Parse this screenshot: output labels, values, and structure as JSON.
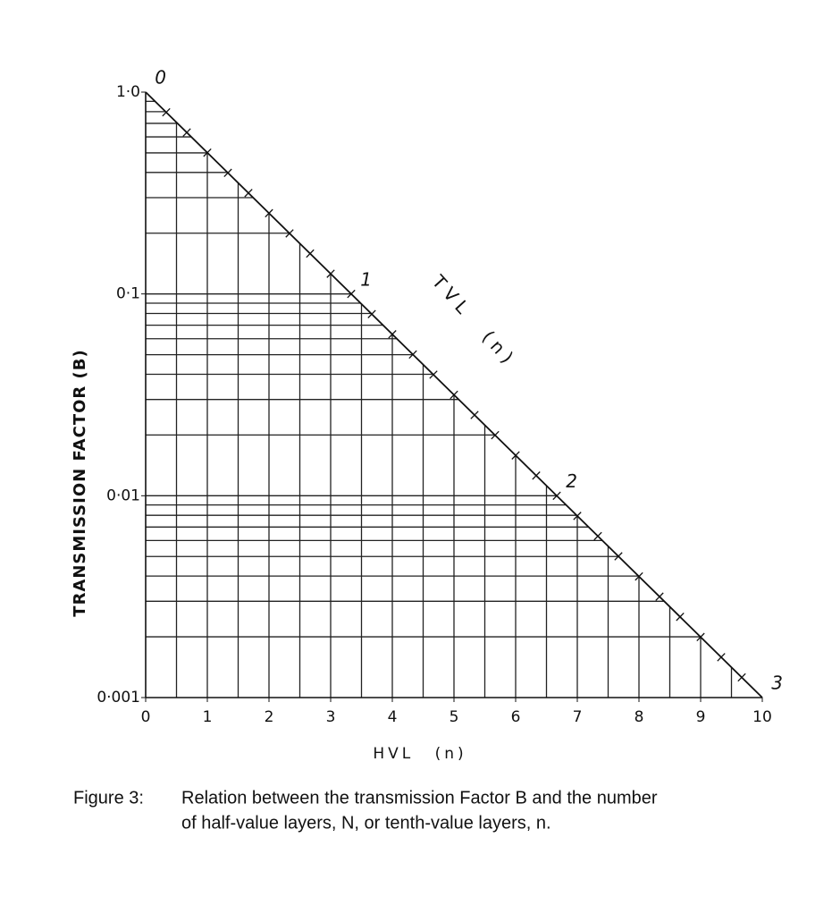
{
  "chart_data": {
    "type": "line",
    "log_y": true,
    "x_label": "HVL (n)",
    "y_label": "TRANSMISSION FACTOR (B)",
    "series": [
      {
        "x": [
          0,
          10
        ],
        "values": [
          1.0,
          0.001
        ],
        "color": "#111111"
      }
    ],
    "xlim": [
      0,
      10
    ],
    "ylim": [
      0.001,
      1.0
    ],
    "xticks": [
      0,
      1,
      2,
      3,
      4,
      5,
      6,
      7,
      8,
      9,
      10
    ],
    "yticks": [
      {
        "value": 1.0,
        "label": "1·0"
      },
      {
        "value": 0.1,
        "label": "0·1"
      },
      {
        "value": 0.01,
        "label": "0·01"
      },
      {
        "value": 0.001,
        "label": "0·001"
      }
    ],
    "x_gridlines": [
      0.5,
      1,
      1.5,
      2,
      2.5,
      3,
      3.5,
      4,
      4.5,
      5,
      5.5,
      6,
      6.5,
      7,
      7.5,
      8,
      8.5,
      9,
      9.5
    ],
    "y_gridlines": [
      0.9,
      0.8,
      0.7,
      0.6,
      0.5,
      0.4,
      0.3,
      0.2,
      0.1,
      0.09,
      0.08,
      0.07,
      0.06,
      0.05,
      0.04,
      0.03,
      0.02,
      0.01,
      0.009,
      0.008,
      0.007,
      0.006,
      0.005,
      0.004,
      0.003,
      0.002
    ],
    "tvl_label": "TVL (n)",
    "tvl_ticks": [
      0,
      1,
      2,
      3
    ],
    "tvl_tick_marks": [
      0.1,
      0.2,
      0.3,
      0.4,
      0.5,
      0.6,
      0.7,
      0.8,
      0.9,
      1.0,
      1.1,
      1.2,
      1.3,
      1.4,
      1.5,
      1.6,
      1.7,
      1.8,
      1.9,
      2.0,
      2.1,
      2.2,
      2.3,
      2.4,
      2.5,
      2.6,
      2.7,
      2.8,
      2.9
    ],
    "caption": {
      "label": "Figure 3:",
      "lines": [
        "Relation between the transmission Factor B and the number",
        "of half-value layers, N, or tenth-value layers, n."
      ]
    }
  }
}
